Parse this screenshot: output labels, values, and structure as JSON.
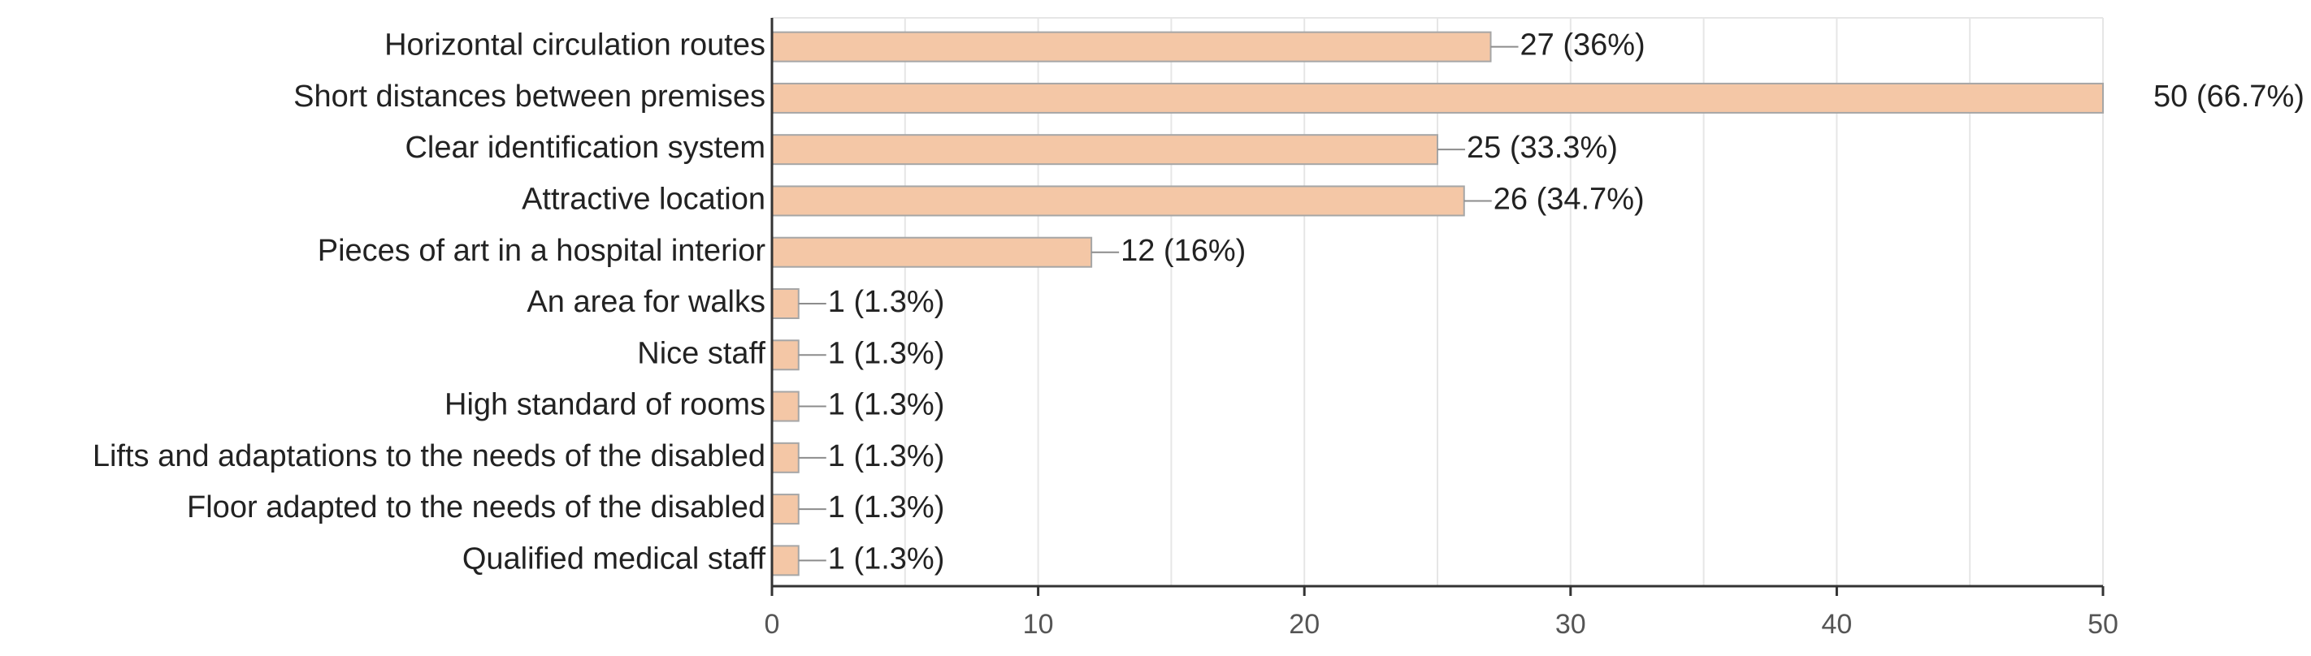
{
  "chart_data": {
    "type": "bar",
    "orientation": "horizontal",
    "categories": [
      "Horizontal circulation routes",
      "Short distances between premises",
      "Clear identification system",
      "Attractive location",
      "Pieces of art in a hospital interior",
      "An area for walks",
      "Nice staff",
      "High standard of rooms",
      "Lifts and adaptations to the needs of the disabled",
      "Floor adapted to the needs of the disabled",
      "Qualified medical staff"
    ],
    "values": [
      27,
      50,
      25,
      26,
      12,
      1,
      1,
      1,
      1,
      1,
      1
    ],
    "data_labels": [
      "27 (36%)",
      "50 (66.7%)",
      "25 (33.3%)",
      "26 (34.7%)",
      "12 (16%)",
      "1 (1.3%)",
      "1 (1.3%)",
      "1 (1.3%)",
      "1 (1.3%)",
      "1 (1.3%)",
      "1 (1.3%)"
    ],
    "xlim": [
      0,
      50
    ],
    "xticks": [
      "0",
      "10",
      "20",
      "30",
      "40",
      "50"
    ],
    "grid": true,
    "bar_color": "#f4c7a6",
    "title": "",
    "xlabel": "",
    "ylabel": ""
  }
}
